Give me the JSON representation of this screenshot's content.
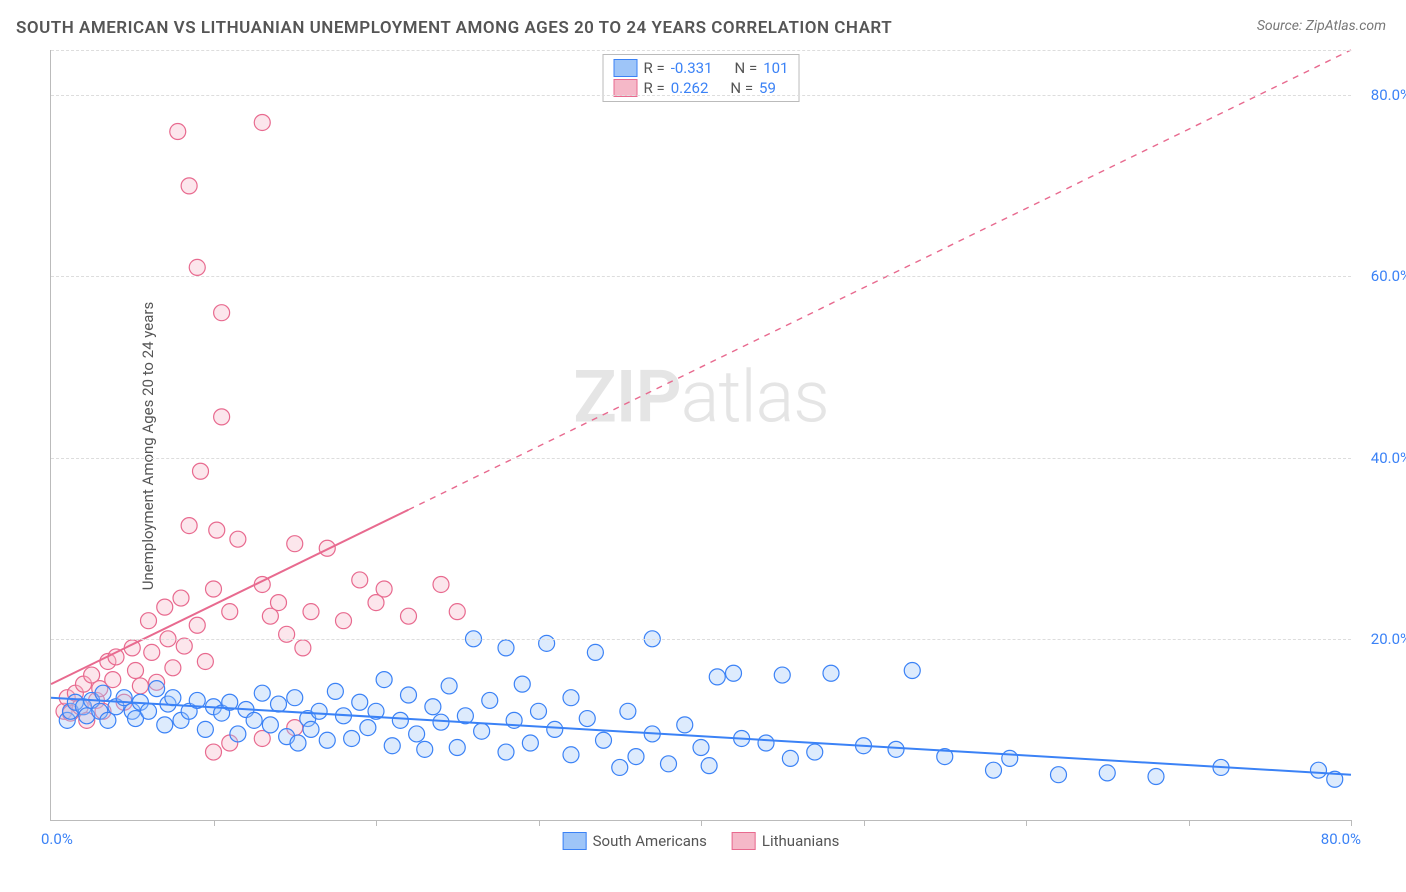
{
  "title": "SOUTH AMERICAN VS LITHUANIAN UNEMPLOYMENT AMONG AGES 20 TO 24 YEARS CORRELATION CHART",
  "source": "Source: ZipAtlas.com",
  "ylabel": "Unemployment Among Ages 20 to 24 years",
  "watermark": {
    "bold": "ZIP",
    "light": "atlas"
  },
  "chart": {
    "type": "scatter",
    "xlim": [
      0,
      80
    ],
    "ylim": [
      0,
      85
    ],
    "yticks": [
      20,
      40,
      60,
      80
    ],
    "ytick_labels": [
      "20.0%",
      "40.0%",
      "60.0%",
      "80.0%"
    ],
    "xticks": [
      10,
      20,
      30,
      40,
      50,
      60,
      70,
      80
    ],
    "x_origin_label": "0.0%",
    "x_max_label": "80.0%",
    "background_color": "#ffffff",
    "grid_color": "#dddddd",
    "grid_dash": "4,4",
    "marker_radius": 8,
    "marker_fill_opacity": 0.35,
    "marker_stroke_width": 1.2,
    "line_width": 2
  },
  "series": {
    "south_americans": {
      "label": "South Americans",
      "color_fill": "#9ec5f8",
      "color_stroke": "#3b82f6",
      "R": "-0.331",
      "N": "101",
      "trend": {
        "x1": 0,
        "y1": 13.5,
        "x2": 80,
        "y2": 5.0,
        "solid_until_x": 80
      },
      "points": [
        [
          1,
          11
        ],
        [
          1.2,
          12
        ],
        [
          1.5,
          13
        ],
        [
          2,
          12.5
        ],
        [
          2.2,
          11.5
        ],
        [
          2.5,
          13.2
        ],
        [
          3,
          12
        ],
        [
          3.2,
          14
        ],
        [
          3.5,
          11
        ],
        [
          4,
          12.5
        ],
        [
          4.5,
          13.5
        ],
        [
          5,
          12
        ],
        [
          5.2,
          11.2
        ],
        [
          5.5,
          13
        ],
        [
          6,
          12
        ],
        [
          6.5,
          14.5
        ],
        [
          7,
          10.5
        ],
        [
          7.2,
          12.8
        ],
        [
          7.5,
          13.5
        ],
        [
          8,
          11
        ],
        [
          8.5,
          12
        ],
        [
          9,
          13.2
        ],
        [
          9.5,
          10
        ],
        [
          10,
          12.5
        ],
        [
          10.5,
          11.8
        ],
        [
          11,
          13
        ],
        [
          11.5,
          9.5
        ],
        [
          12,
          12.2
        ],
        [
          12.5,
          11
        ],
        [
          13,
          14
        ],
        [
          13.5,
          10.5
        ],
        [
          14,
          12.8
        ],
        [
          14.5,
          9.2
        ],
        [
          15,
          13.5
        ],
        [
          15.2,
          8.5
        ],
        [
          15.8,
          11.2
        ],
        [
          16,
          10
        ],
        [
          16.5,
          12
        ],
        [
          17,
          8.8
        ],
        [
          17.5,
          14.2
        ],
        [
          18,
          11.5
        ],
        [
          18.5,
          9
        ],
        [
          19,
          13
        ],
        [
          19.5,
          10.2
        ],
        [
          20,
          12
        ],
        [
          20.5,
          15.5
        ],
        [
          21,
          8.2
        ],
        [
          21.5,
          11
        ],
        [
          22,
          13.8
        ],
        [
          22.5,
          9.5
        ],
        [
          23,
          7.8
        ],
        [
          23.5,
          12.5
        ],
        [
          24,
          10.8
        ],
        [
          24.5,
          14.8
        ],
        [
          25,
          8
        ],
        [
          25.5,
          11.5
        ],
        [
          26,
          20
        ],
        [
          26.5,
          9.8
        ],
        [
          27,
          13.2
        ],
        [
          28,
          7.5
        ],
        [
          28,
          19
        ],
        [
          28.5,
          11
        ],
        [
          29,
          15
        ],
        [
          29.5,
          8.5
        ],
        [
          30,
          12
        ],
        [
          30.5,
          19.5
        ],
        [
          31,
          10
        ],
        [
          32,
          13.5
        ],
        [
          32,
          7.2
        ],
        [
          33,
          11.2
        ],
        [
          33.5,
          18.5
        ],
        [
          34,
          8.8
        ],
        [
          35,
          5.8
        ],
        [
          35.5,
          12
        ],
        [
          36,
          7
        ],
        [
          37,
          9.5
        ],
        [
          37,
          20
        ],
        [
          38,
          6.2
        ],
        [
          39,
          10.5
        ],
        [
          40,
          8
        ],
        [
          40.5,
          6
        ],
        [
          41,
          15.8
        ],
        [
          42,
          16.2
        ],
        [
          42.5,
          9
        ],
        [
          44,
          8.5
        ],
        [
          45,
          16
        ],
        [
          45.5,
          6.8
        ],
        [
          47,
          7.5
        ],
        [
          48,
          16.2
        ],
        [
          50,
          8.2
        ],
        [
          52,
          7.8
        ],
        [
          53,
          16.5
        ],
        [
          55,
          7
        ],
        [
          58,
          5.5
        ],
        [
          59,
          6.8
        ],
        [
          62,
          5
        ],
        [
          65,
          5.2
        ],
        [
          68,
          4.8
        ],
        [
          72,
          5.8
        ],
        [
          78,
          5.5
        ],
        [
          79,
          4.5
        ]
      ]
    },
    "lithuanians": {
      "label": "Lithuanians",
      "color_fill": "#f5b8c8",
      "color_stroke": "#e86a8f",
      "R": "0.262",
      "N": "59",
      "trend": {
        "x1": 0,
        "y1": 15,
        "x2": 80,
        "y2": 85,
        "solid_until_x": 22
      },
      "points": [
        [
          0.8,
          12
        ],
        [
          1,
          13.5
        ],
        [
          1.2,
          11.8
        ],
        [
          1.5,
          14
        ],
        [
          1.8,
          12.5
        ],
        [
          2,
          15
        ],
        [
          2.2,
          11
        ],
        [
          2.5,
          16
        ],
        [
          2.8,
          13.2
        ],
        [
          3,
          14.5
        ],
        [
          3.2,
          12
        ],
        [
          3.5,
          17.5
        ],
        [
          3.8,
          15.5
        ],
        [
          4,
          18
        ],
        [
          4.5,
          13
        ],
        [
          5,
          19
        ],
        [
          5.2,
          16.5
        ],
        [
          5.5,
          14.8
        ],
        [
          6,
          22
        ],
        [
          6.2,
          18.5
        ],
        [
          6.5,
          15.2
        ],
        [
          7,
          23.5
        ],
        [
          7.2,
          20
        ],
        [
          7.5,
          16.8
        ],
        [
          7.8,
          76
        ],
        [
          8,
          24.5
        ],
        [
          8.2,
          19.2
        ],
        [
          8.5,
          32.5
        ],
        [
          8.5,
          70
        ],
        [
          9,
          21.5
        ],
        [
          9,
          61
        ],
        [
          9.2,
          38.5
        ],
        [
          9.5,
          17.5
        ],
        [
          10,
          25.5
        ],
        [
          10.2,
          32
        ],
        [
          10.5,
          44.5
        ],
        [
          10.5,
          56
        ],
        [
          11,
          23
        ],
        [
          11.5,
          31
        ],
        [
          13,
          26
        ],
        [
          13,
          77
        ],
        [
          13.5,
          22.5
        ],
        [
          14,
          24
        ],
        [
          14.5,
          20.5
        ],
        [
          15,
          30.5
        ],
        [
          15.5,
          19
        ],
        [
          16,
          23
        ],
        [
          17,
          30
        ],
        [
          18,
          22
        ],
        [
          19,
          26.5
        ],
        [
          20,
          24
        ],
        [
          20.5,
          25.5
        ],
        [
          22,
          22.5
        ],
        [
          24,
          26
        ],
        [
          25,
          23
        ],
        [
          10,
          7.5
        ],
        [
          11,
          8.5
        ],
        [
          13,
          9
        ],
        [
          15,
          10.2
        ]
      ]
    }
  },
  "legend_top": {
    "R_label": "R =",
    "N_label": "N ="
  }
}
